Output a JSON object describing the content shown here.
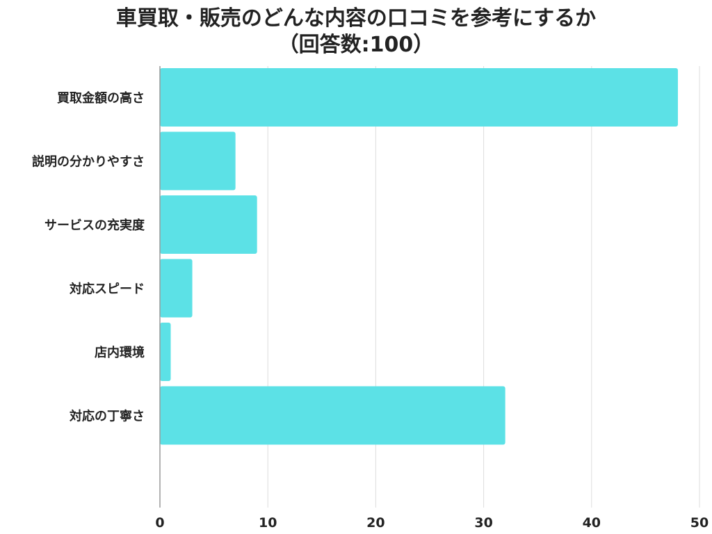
{
  "chart_data": {
    "type": "bar",
    "orientation": "horizontal",
    "title": "車買取・販売のどんな内容の口コミを参考にするか",
    "subtitle": "（回答数:100）",
    "categories": [
      "買取金額の高さ",
      "説明の分かりやすさ",
      "サービスの充実度",
      "対応スピード",
      "店内環境",
      "対応の丁寧さ"
    ],
    "values": [
      48,
      7,
      9,
      3,
      1,
      32
    ],
    "xlim": [
      0,
      50
    ],
    "xticks": [
      0,
      10,
      20,
      30,
      40,
      50
    ],
    "grid": true,
    "bar_color": "#5ce1e6",
    "grid_color": "#dddddd"
  }
}
